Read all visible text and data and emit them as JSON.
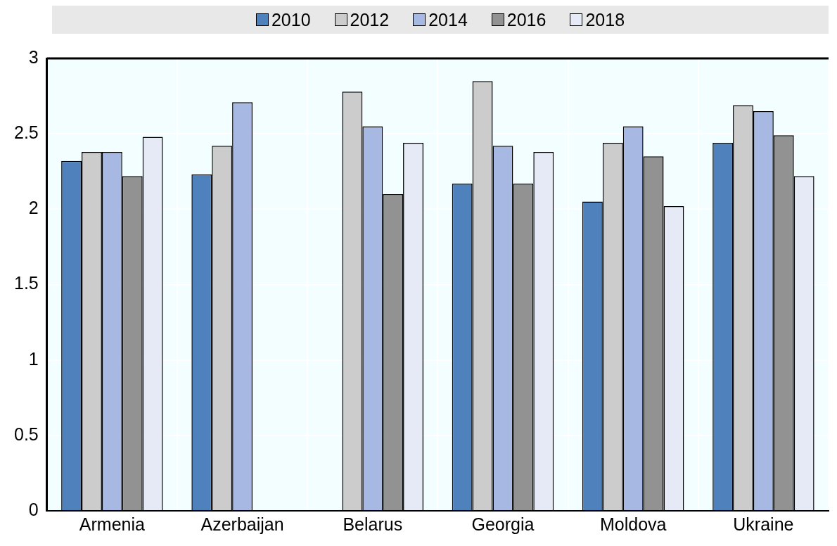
{
  "chart_data": {
    "type": "bar",
    "categories": [
      "Armenia",
      "Azerbaijan",
      "Belarus",
      "Georgia",
      "Moldova",
      "Ukraine"
    ],
    "series": [
      {
        "name": "2010",
        "color": "#4f81bd",
        "values": [
          2.32,
          2.23,
          null,
          2.17,
          2.05,
          2.44
        ]
      },
      {
        "name": "2012",
        "color": "#cccccc",
        "values": [
          2.38,
          2.42,
          2.78,
          2.85,
          2.44,
          2.69
        ]
      },
      {
        "name": "2014",
        "color": "#a7b9e3",
        "values": [
          2.38,
          2.71,
          2.55,
          2.42,
          2.55,
          2.65
        ]
      },
      {
        "name": "2016",
        "color": "#929292",
        "values": [
          2.22,
          null,
          2.1,
          2.17,
          2.35,
          2.49
        ]
      },
      {
        "name": "2018",
        "color": "#e6eaf6",
        "values": [
          2.48,
          null,
          2.44,
          2.38,
          2.02,
          2.22
        ]
      }
    ],
    "ylim": [
      0,
      3
    ],
    "yticks": [
      0,
      0.5,
      1,
      1.5,
      2,
      2.5,
      3
    ],
    "grid": true,
    "legend": "top"
  }
}
